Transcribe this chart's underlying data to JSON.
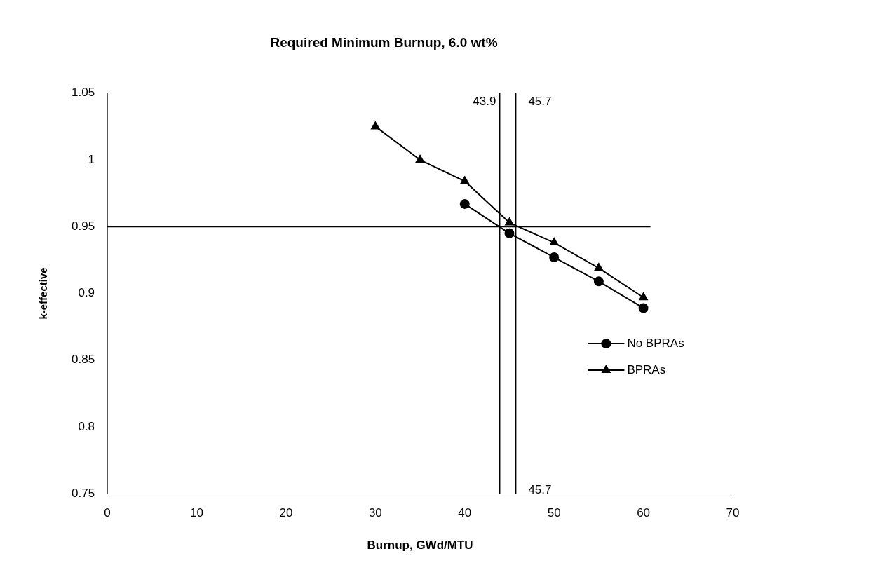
{
  "chart_data": {
    "type": "line",
    "title": "Required Minimum Burnup, 6.0 wt%",
    "xlabel": "Burnup, GWd/MTU",
    "ylabel": "k-effective",
    "x": [
      30,
      35,
      40,
      45,
      50,
      55,
      60
    ],
    "series": [
      {
        "name": "No BPRAs",
        "color": "#000000",
        "marker": "circle",
        "values": [
          null,
          null,
          0.967,
          0.945,
          0.927,
          0.909,
          0.889
        ]
      },
      {
        "name": "BPRAs",
        "color": "#000000",
        "marker": "triangle",
        "values": [
          1.025,
          1.0,
          0.984,
          0.953,
          0.938,
          0.919,
          0.897
        ]
      }
    ],
    "xlim": [
      0,
      70
    ],
    "xticks": [
      0,
      10,
      20,
      30,
      40,
      50,
      60,
      70
    ],
    "ylim": [
      0.75,
      1.05
    ],
    "yticks": [
      0.75,
      0.8,
      0.85,
      0.9,
      0.95,
      1,
      1.05
    ],
    "ref_lines": [
      {
        "axis": "y",
        "value": 0.95,
        "color": "#000000"
      },
      {
        "axis": "x",
        "value": 43.9,
        "label": "43.9",
        "color": "#000000"
      },
      {
        "axis": "x",
        "value": 45.7,
        "label": "45.7",
        "color": "#000000"
      }
    ],
    "annotations": [
      {
        "text": "45.7",
        "x": 45.7,
        "y": 0.75
      }
    ],
    "grid": false,
    "legend": "right"
  }
}
